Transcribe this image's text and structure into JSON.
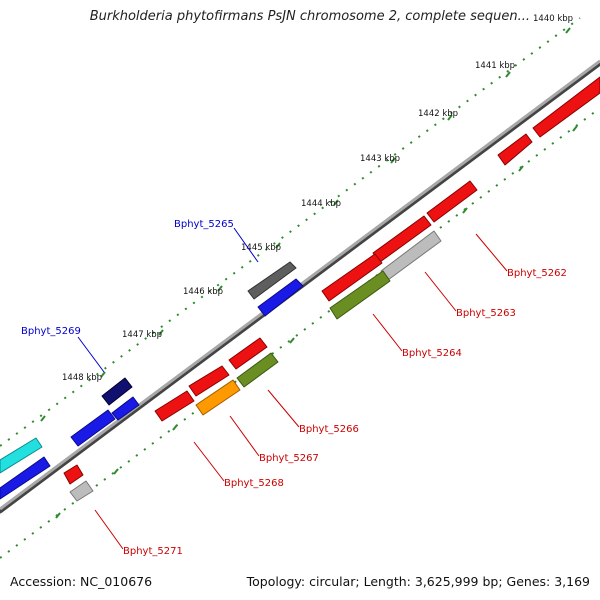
{
  "title": "Burkholderia phytofirmans PsJN chromosome 2, complete sequen...",
  "footer": {
    "accession": "Accession: NC_010676",
    "summary": "Topology: circular; Length: 3,625,999 bp; Genes: 3,169"
  },
  "scale_labels": [
    "1440 kbp",
    "1441 kbp",
    "1442 kbp",
    "1443 kbp",
    "1444 kbp",
    "1445 kbp",
    "1446 kbp",
    "1447 kbp",
    "1448 kbp"
  ],
  "gene_labels": {
    "g5262": "Bphyt_5262",
    "g5263": "Bphyt_5263",
    "g5264": "Bphyt_5264",
    "g5265": "Bphyt_5265",
    "g5266": "Bphyt_5266",
    "g5267": "Bphyt_5267",
    "g5268": "Bphyt_5268",
    "g5269": "Bphyt_5269",
    "g5271": "Bphyt_5271"
  },
  "colors": {
    "backbone": "#7a7a7a",
    "scale_dots": "#2e8b2e",
    "forward_label": "#0000cc",
    "reverse_label": "#cc0000",
    "red": "#ee1111",
    "blue": "#1a1ae6",
    "navy": "#101070",
    "cyan": "#22e0e0",
    "gray": "#666666",
    "lightgray": "#bcbcbc",
    "olive": "#6b8e23",
    "orange": "#ff9900"
  }
}
